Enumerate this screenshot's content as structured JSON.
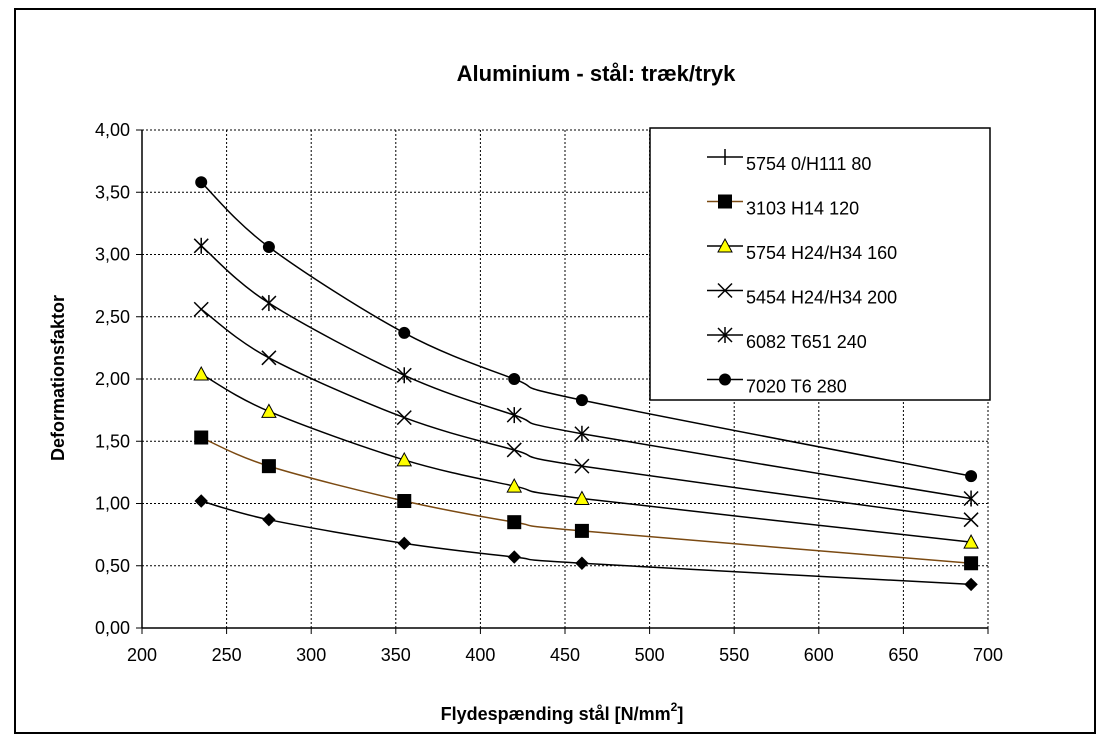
{
  "chart_data": {
    "type": "line",
    "title": "Aluminium - stål: træk/tryk",
    "xlabel": "Flydespænding stål [N/mm",
    "xlabel_sup": "2",
    "xlabel_tail": "]",
    "ylabel": "Deformationsfaktor",
    "xlim": [
      200,
      700
    ],
    "ylim": [
      0,
      4
    ],
    "xticks": [
      "200",
      "250",
      "300",
      "350",
      "400",
      "450",
      "500",
      "550",
      "600",
      "650",
      "700"
    ],
    "yticks": [
      "0,00",
      "0,50",
      "1,00",
      "1,50",
      "2,00",
      "2,50",
      "3,00",
      "3,50",
      "4,00"
    ],
    "grid": true,
    "legend_position": "top-right",
    "x": [
      235,
      275,
      355,
      420,
      460,
      690
    ],
    "series": [
      {
        "name": "5754 0/H111 80",
        "marker": "diamond",
        "line_color": "#000000",
        "marker_fill": "#000000",
        "legend_marker": "plus",
        "values": [
          1.02,
          0.87,
          0.68,
          0.57,
          0.52,
          0.35
        ]
      },
      {
        "name": "3103 H14 120",
        "marker": "square",
        "line_color": "#7b4a12",
        "marker_fill": "#000000",
        "legend_marker": "square",
        "values": [
          1.53,
          1.3,
          1.02,
          0.85,
          0.78,
          0.52
        ]
      },
      {
        "name": "5754 H24/H34 160",
        "marker": "triangle",
        "line_color": "#000000",
        "marker_fill": "#ffff00",
        "legend_marker": "triangle",
        "values": [
          2.04,
          1.74,
          1.35,
          1.14,
          1.04,
          0.69
        ]
      },
      {
        "name": "5454 H24/H34 200",
        "marker": "x",
        "line_color": "#000000",
        "marker_fill": "#000000",
        "legend_marker": "x",
        "values": [
          2.56,
          2.17,
          1.69,
          1.43,
          1.3,
          0.87
        ]
      },
      {
        "name": "6082 T651 240",
        "marker": "star",
        "line_color": "#000000",
        "marker_fill": "#000000",
        "legend_marker": "star",
        "values": [
          3.07,
          2.61,
          2.03,
          1.71,
          1.56,
          1.04
        ]
      },
      {
        "name": "7020 T6 280",
        "marker": "circle",
        "line_color": "#000000",
        "marker_fill": "#000000",
        "legend_marker": "circle",
        "values": [
          3.58,
          3.06,
          2.37,
          2.0,
          1.83,
          1.22
        ]
      }
    ]
  }
}
